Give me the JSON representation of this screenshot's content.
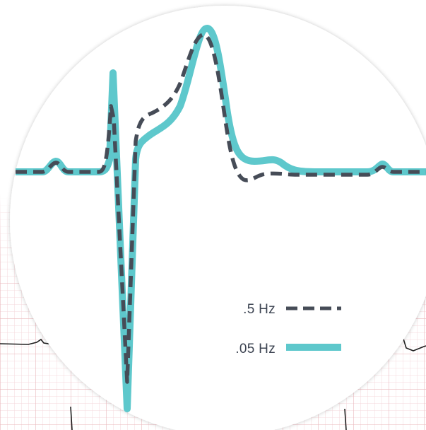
{
  "legend": [
    {
      "label": ".5 Hz",
      "style": "dashed",
      "color": "#464c57"
    },
    {
      "label": ".05 Hz",
      "style": "solid",
      "color": "#5ec8cc"
    }
  ],
  "colors": {
    "grid_minor": "#f4d9dc",
    "grid_major": "#eab9be",
    "background_trace": "#1e1e1e",
    "circle_fill": "#ffffff",
    "circle_shadow": "#c9c9c9"
  }
}
